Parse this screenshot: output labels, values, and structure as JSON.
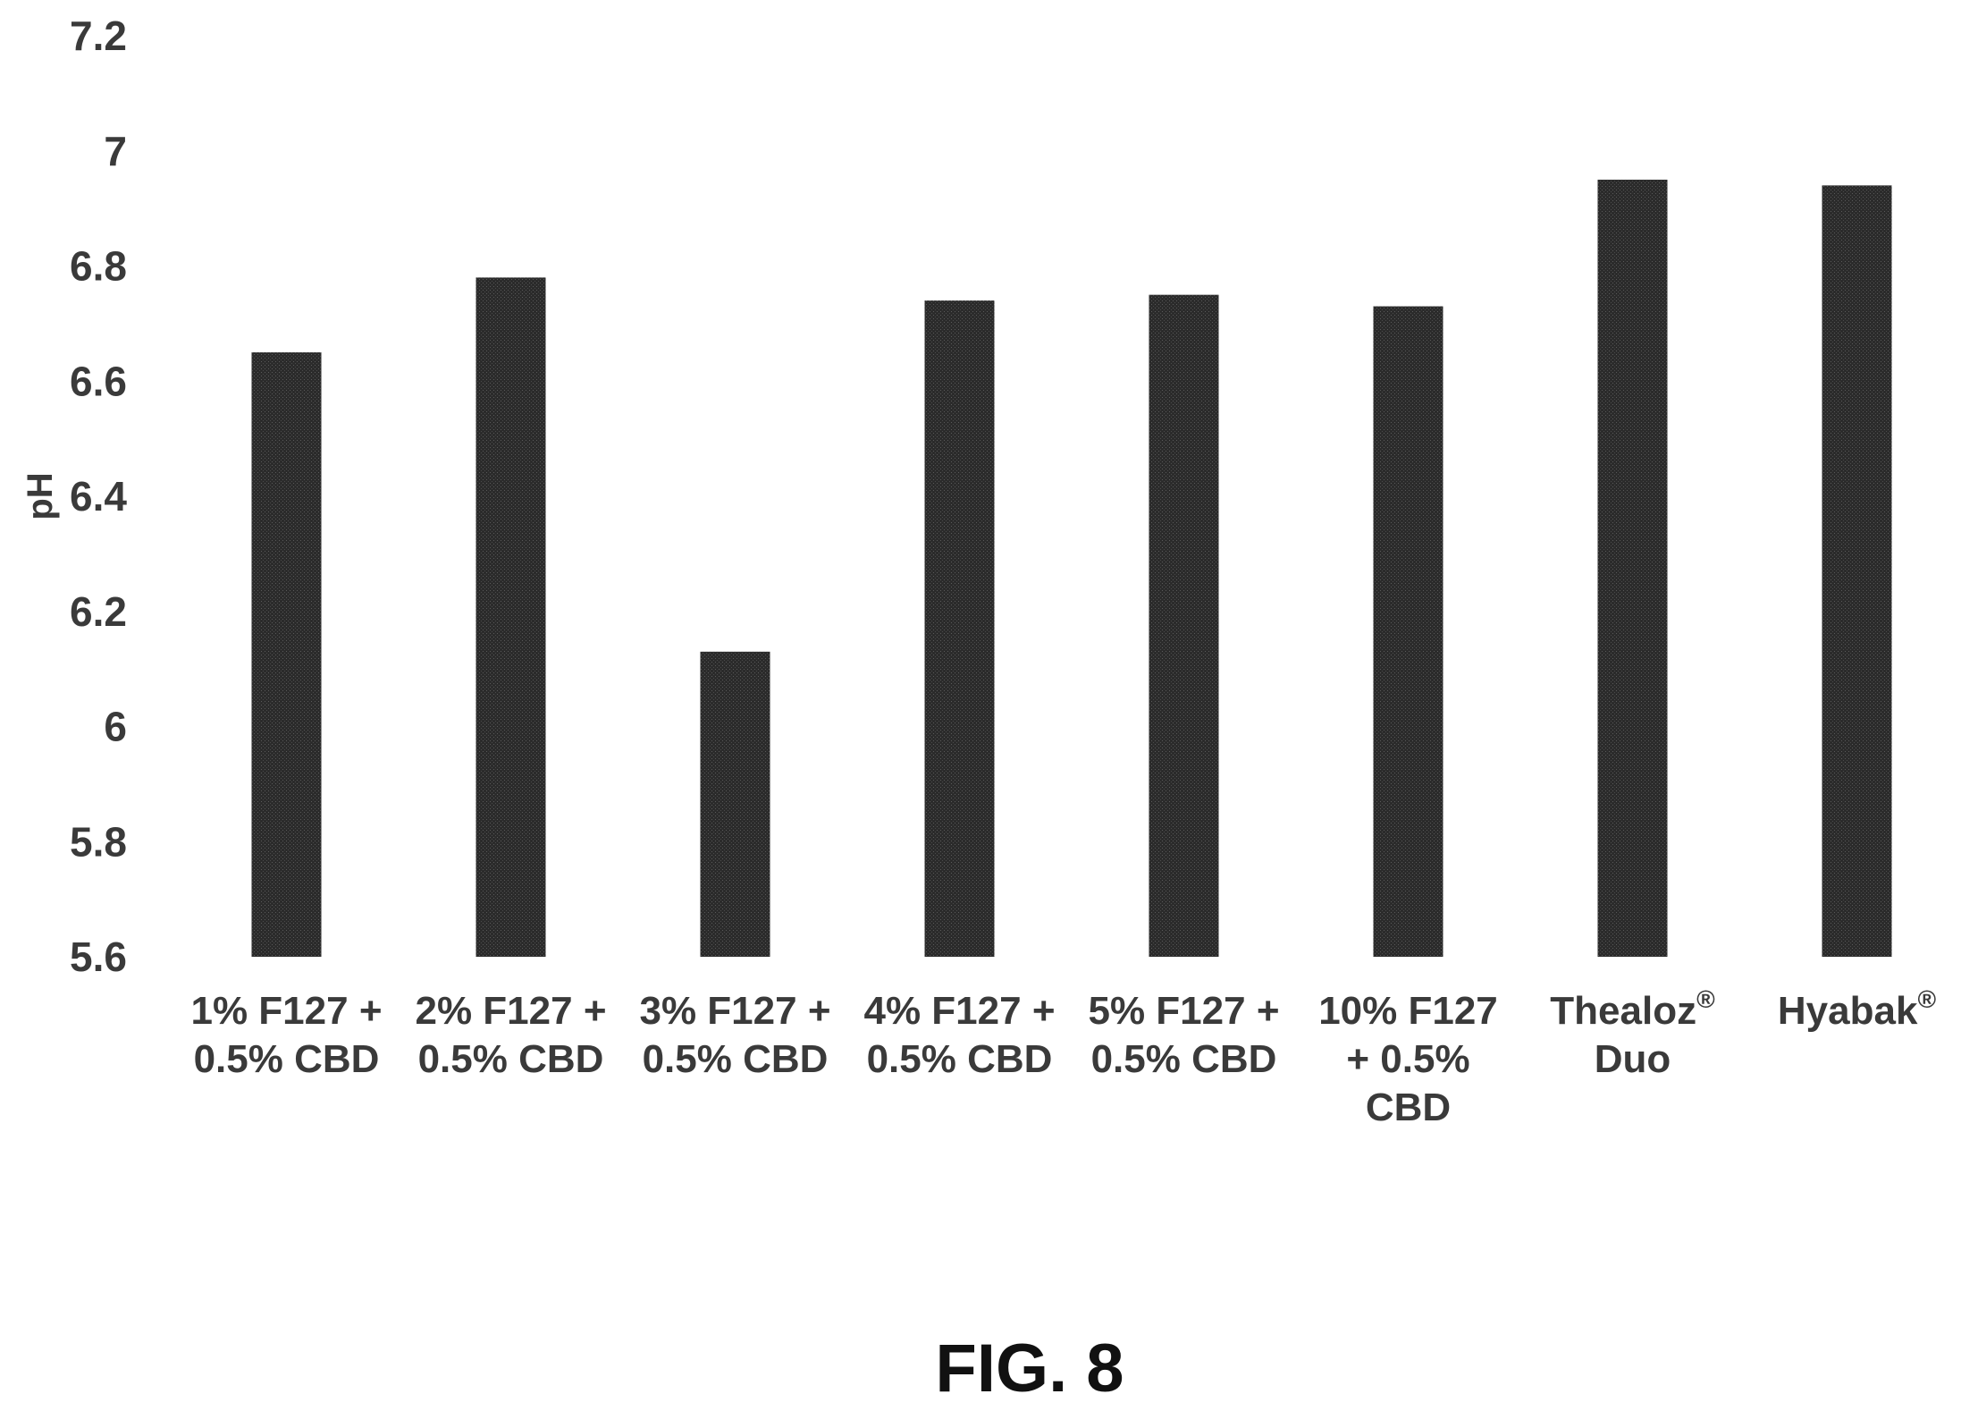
{
  "chart_data": {
    "type": "bar",
    "title": "",
    "xlabel": "",
    "ylabel": "pH",
    "ylim": [
      5.6,
      7.2
    ],
    "yticks": [
      "7.2",
      "7",
      "6.8",
      "6.6",
      "6.4",
      "6.2",
      "6",
      "5.8",
      "5.6"
    ],
    "ytick_values": [
      7.2,
      7.0,
      6.8,
      6.6,
      6.4,
      6.2,
      6.0,
      5.8,
      5.6
    ],
    "grid": false,
    "legend": "none",
    "bar_color": "#2b2b2b",
    "categories": [
      {
        "lines": [
          "1% F127 +",
          "0.5% CBD"
        ],
        "sup": ""
      },
      {
        "lines": [
          "2% F127 +",
          "0.5% CBD"
        ],
        "sup": ""
      },
      {
        "lines": [
          "3% F127 +",
          "0.5% CBD"
        ],
        "sup": ""
      },
      {
        "lines": [
          "4% F127 +",
          "0.5% CBD"
        ],
        "sup": ""
      },
      {
        "lines": [
          "5% F127 +",
          "0.5% CBD"
        ],
        "sup": ""
      },
      {
        "lines": [
          "10% F127",
          "+ 0.5%",
          "CBD"
        ],
        "sup": ""
      },
      {
        "lines": [
          "Thealoz",
          "Duo"
        ],
        "sup": "®"
      },
      {
        "lines": [
          "Hyabak"
        ],
        "sup": "®"
      }
    ],
    "values": [
      6.65,
      6.78,
      6.13,
      6.74,
      6.75,
      6.73,
      6.95,
      6.94
    ]
  },
  "figure_label": "FIG. 8"
}
